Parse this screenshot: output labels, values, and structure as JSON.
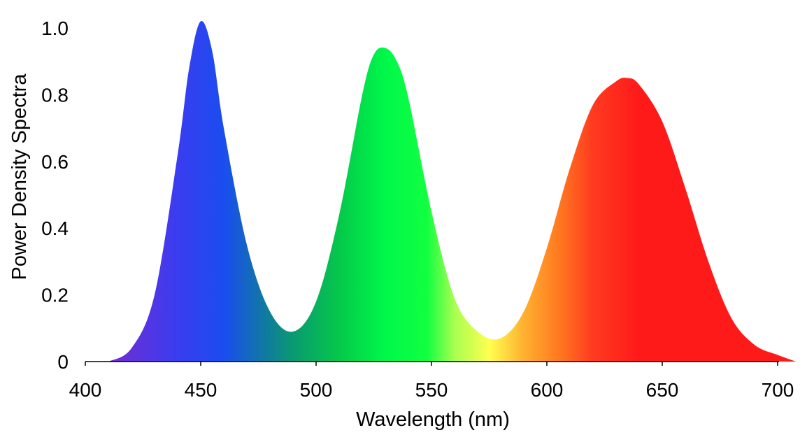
{
  "chart_data": {
    "type": "area",
    "title": "",
    "xlabel": "Wavelength (nm)",
    "ylabel": "Power Density Spectra",
    "xlim": [
      400,
      710
    ],
    "ylim": [
      0,
      1.05
    ],
    "x_ticks": [
      {
        "value": 400,
        "label": "400"
      },
      {
        "value": 450,
        "label": "450"
      },
      {
        "value": 500,
        "label": "500"
      },
      {
        "value": 550,
        "label": "550"
      },
      {
        "value": 600,
        "label": "600"
      },
      {
        "value": 650,
        "label": "650"
      },
      {
        "value": 700,
        "label": "700"
      }
    ],
    "y_ticks": [
      {
        "value": 0,
        "label": "0"
      },
      {
        "value": 0.2,
        "label": "0.2"
      },
      {
        "value": 0.4,
        "label": "0.4"
      },
      {
        "value": 0.6,
        "label": "0.6"
      },
      {
        "value": 0.8,
        "label": "0.8"
      },
      {
        "value": 1.0,
        "label": "1.0"
      }
    ],
    "grid": false,
    "legend": "none",
    "fill": "wavelength color gradient",
    "series": [
      {
        "x": [
          410,
          420,
          430,
          440,
          445,
          450,
          455,
          460,
          470,
          480,
          490,
          500,
          510,
          520,
          525,
          530,
          535,
          540,
          550,
          560,
          570,
          580,
          590,
          600,
          610,
          620,
          630,
          635,
          640,
          650,
          660,
          670,
          680,
          690,
          700,
          708
        ],
        "values": [
          0.0,
          0.04,
          0.2,
          0.62,
          0.88,
          1.02,
          0.93,
          0.7,
          0.35,
          0.15,
          0.09,
          0.18,
          0.44,
          0.8,
          0.92,
          0.94,
          0.9,
          0.79,
          0.45,
          0.19,
          0.09,
          0.07,
          0.15,
          0.34,
          0.58,
          0.77,
          0.84,
          0.85,
          0.83,
          0.72,
          0.52,
          0.3,
          0.13,
          0.05,
          0.02,
          0.0
        ]
      }
    ],
    "colors": {
      "stops": [
        {
          "wavelength": 415,
          "color": "#6a2fd6"
        },
        {
          "wavelength": 440,
          "color": "#3a3df0"
        },
        {
          "wavelength": 460,
          "color": "#1a4df0"
        },
        {
          "wavelength": 478,
          "color": "#107aa0"
        },
        {
          "wavelength": 490,
          "color": "#0a9a70"
        },
        {
          "wavelength": 510,
          "color": "#05c84a"
        },
        {
          "wavelength": 530,
          "color": "#00f84a"
        },
        {
          "wavelength": 548,
          "color": "#10ff40"
        },
        {
          "wavelength": 560,
          "color": "#a8ff50"
        },
        {
          "wavelength": 575,
          "color": "#ffff50"
        },
        {
          "wavelength": 590,
          "color": "#ffb030"
        },
        {
          "wavelength": 605,
          "color": "#ff7a20"
        },
        {
          "wavelength": 620,
          "color": "#ff3a20"
        },
        {
          "wavelength": 640,
          "color": "#ff1a1a"
        },
        {
          "wavelength": 708,
          "color": "#ff1a1a"
        }
      ]
    }
  }
}
